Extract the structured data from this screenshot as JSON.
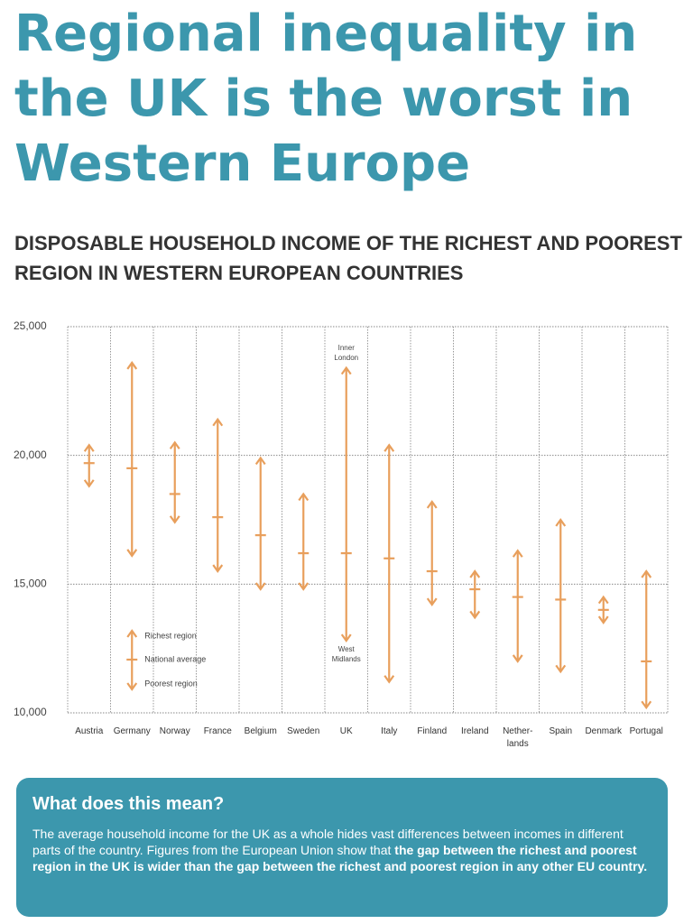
{
  "chart_data": {
    "type": "range",
    "title": "Regional inequality in the UK is the worst in Western Europe",
    "subtitle": "DISPOSABLE HOUSEHOLD INCOME OF THE RICHEST AND POOREST REGION IN WESTERN EUROPEAN COUNTRIES",
    "categories": [
      "Austria",
      "Germany",
      "Norway",
      "France",
      "Belgium",
      "Sweden",
      "UK",
      "Italy",
      "Finland",
      "Ireland",
      "Nether-lands",
      "Spain",
      "Denmark",
      "Portugal"
    ],
    "series": [
      {
        "name": "Richest region",
        "color": "#e89f5c",
        "values": [
          20400,
          23600,
          20500,
          21400,
          19900,
          18500,
          23400,
          20400,
          18200,
          15500,
          16300,
          17500,
          14500,
          15500
        ]
      },
      {
        "name": "National average",
        "color": "#e89f5c",
        "values": [
          19700,
          19500,
          18500,
          17600,
          16900,
          16200,
          16200,
          16000,
          15500,
          14800,
          14500,
          14400,
          14000,
          12000
        ]
      },
      {
        "name": "Poorest region",
        "color": "#e89f5c",
        "values": [
          18800,
          16100,
          17400,
          15500,
          14800,
          14800,
          12800,
          11200,
          14200,
          13700,
          12000,
          11600,
          13500,
          10200
        ]
      }
    ],
    "ylim": [
      10000,
      25000
    ],
    "yticks": [
      {
        "value": 10000,
        "label": "10,000"
      },
      {
        "value": 15000,
        "label": "15,000"
      },
      {
        "value": 20000,
        "label": "20,000"
      },
      {
        "value": 25000,
        "label": "25,000"
      }
    ],
    "grid": true,
    "legend_position": "lower left",
    "annotations": [
      {
        "category": "UK",
        "text": "Inner London"
      },
      {
        "category": "UK",
        "text": "West Midlands"
      }
    ]
  },
  "info_box": {
    "heading": "What does this mean?",
    "text": "The average household income for the UK as a whole hides vast differences between incomes in different parts of the country. Figures from the European Union show that ",
    "bold_text": "the gap between the richest and poorest region in the UK is wider than the gap between the richest and poorest region in any other EU country."
  }
}
